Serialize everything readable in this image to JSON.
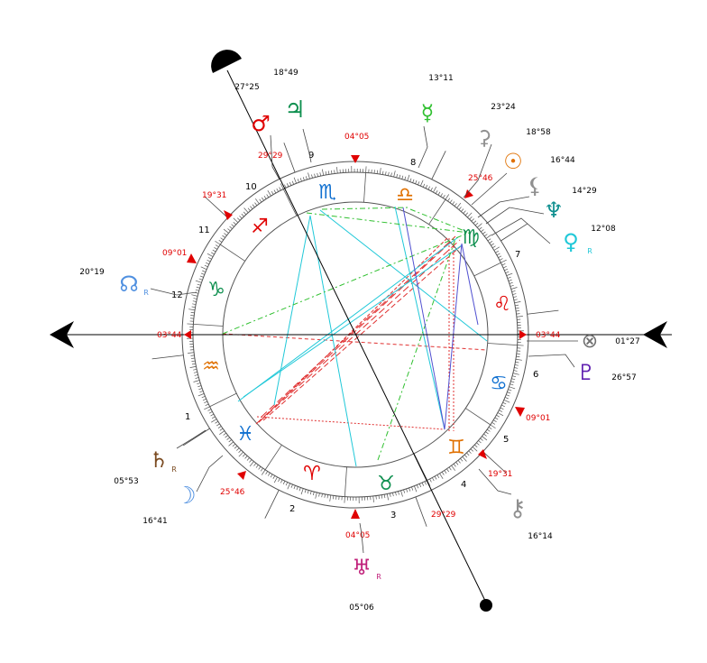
{
  "colors": {
    "accent_red": "#e00000",
    "aspect_red": "#e03030",
    "aspect_cyan": "#20c8d8",
    "aspect_green": "#30c030",
    "aspect_blue": "#5050d0"
  },
  "house_numbers": [
    "1",
    "2",
    "3",
    "4",
    "5",
    "6",
    "7",
    "8",
    "9",
    "10",
    "11",
    "12"
  ],
  "signs": [
    {
      "name": "aries",
      "glyph": "♈",
      "color": "#e00000"
    },
    {
      "name": "taurus",
      "glyph": "♉",
      "color": "#109050"
    },
    {
      "name": "gemini",
      "glyph": "♊",
      "color": "#e07000"
    },
    {
      "name": "cancer",
      "glyph": "♋",
      "color": "#1070d0"
    },
    {
      "name": "leo",
      "glyph": "♌",
      "color": "#e00000"
    },
    {
      "name": "virgo",
      "glyph": "♍",
      "color": "#109050"
    },
    {
      "name": "libra",
      "glyph": "♎",
      "color": "#e07000"
    },
    {
      "name": "scorpio",
      "glyph": "♏",
      "color": "#1070d0"
    },
    {
      "name": "sagittarius",
      "glyph": "♐",
      "color": "#e00000"
    },
    {
      "name": "capricorn",
      "glyph": "♑",
      "color": "#109050"
    },
    {
      "name": "aquarius",
      "glyph": "♒",
      "color": "#e07000"
    },
    {
      "name": "pisces",
      "glyph": "♓",
      "color": "#1070d0"
    }
  ],
  "cusp_labels": {
    "asc": "03°44",
    "dsc": "03°44",
    "mc": "04°05",
    "ic": "04°05",
    "c11": "19°31",
    "c5": "19°31",
    "c12": "09°01",
    "c6": "09°01",
    "c2": "25°46",
    "c8": "25°46",
    "c3": "29°29",
    "c9": "29°29"
  },
  "planets": [
    {
      "id": "mars",
      "glyph": "♂",
      "color": "#e00000",
      "degree": "27°25",
      "rx": ""
    },
    {
      "id": "jupiter",
      "glyph": "♃",
      "color": "#109050",
      "degree": "18°49",
      "rx": ""
    },
    {
      "id": "mercury",
      "glyph": "☿",
      "color": "#30c030",
      "degree": "13°11",
      "rx": ""
    },
    {
      "id": "ceres",
      "glyph": "⚳",
      "color": "#909090",
      "degree": "23°24",
      "rx": ""
    },
    {
      "id": "sun",
      "glyph": "☉",
      "color": "#e07000",
      "degree": "18°58",
      "rx": ""
    },
    {
      "id": "lilith",
      "glyph": "⚸",
      "color": "#909090",
      "degree": "16°44",
      "rx": ""
    },
    {
      "id": "neptune",
      "glyph": "♆",
      "color": "#109090",
      "degree": "14°29",
      "rx": ""
    },
    {
      "id": "venus",
      "glyph": "♀",
      "color": "#20c8d8",
      "degree": "12°08",
      "rx": "R"
    },
    {
      "id": "node",
      "glyph": "☊",
      "color": "#5090e0",
      "degree": "20°19",
      "rx": "R"
    },
    {
      "id": "fortune",
      "glyph": "⊗",
      "color": "#707070",
      "degree": "01°27",
      "rx": ""
    },
    {
      "id": "pluto",
      "glyph": "♇",
      "color": "#6020b0",
      "degree": "26°57",
      "rx": ""
    },
    {
      "id": "saturn",
      "glyph": "♄",
      "color": "#7a4a20",
      "degree": "05°53",
      "rx": "R"
    },
    {
      "id": "moon",
      "glyph": "☽",
      "color": "#5090e0",
      "degree": "16°41",
      "rx": ""
    },
    {
      "id": "chiron",
      "glyph": "⚷",
      "color": "#909090",
      "degree": "16°14",
      "rx": ""
    },
    {
      "id": "uranus",
      "glyph": "♅",
      "color": "#c0207a",
      "degree": "05°06",
      "rx": "R"
    }
  ]
}
